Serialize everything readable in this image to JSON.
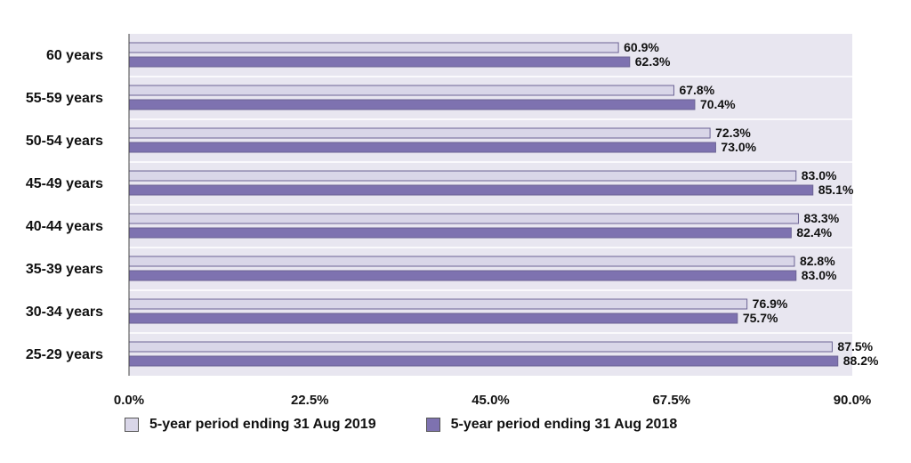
{
  "chart_data": {
    "type": "bar",
    "orientation": "horizontal",
    "categories": [
      "60 years",
      "55-59 years",
      "50-54 years",
      "45-49 years",
      "40-44 years",
      "35-39 years",
      "30-34 years",
      "25-29 years"
    ],
    "series": [
      {
        "name": "5-year period ending 31 Aug 2019",
        "color": "#d9d6e8",
        "values": [
          60.9,
          67.8,
          72.3,
          83.0,
          83.3,
          82.8,
          76.9,
          87.5
        ],
        "labels": [
          "60.9%",
          "67.8%",
          "72.3%",
          "83.0%",
          "83.3%",
          "82.8%",
          "76.9%",
          "87.5%"
        ]
      },
      {
        "name": "5-year period ending 31 Aug 2018",
        "color": "#7e72b0",
        "values": [
          62.3,
          70.4,
          73.0,
          85.1,
          82.4,
          83.0,
          75.7,
          88.2
        ],
        "labels": [
          "62.3%",
          "70.4%",
          "73.0%",
          "85.1%",
          "82.4%",
          "83.0%",
          "75.7%",
          "88.2%"
        ]
      }
    ],
    "ticks": [
      0,
      22.5,
      45,
      67.5,
      90
    ],
    "tick_labels": [
      "0.0%",
      "22.5%",
      "45.0%",
      "67.5%",
      "90.0%"
    ],
    "xlim": [
      0,
      90
    ],
    "plot_background": "#e8e6f0",
    "legend_position": "bottom"
  }
}
